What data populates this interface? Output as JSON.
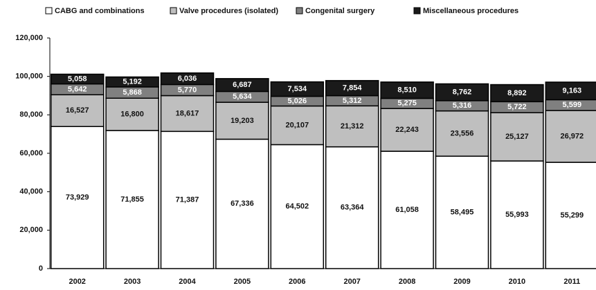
{
  "chart_data": {
    "type": "stacked_bar",
    "categories": [
      "2002",
      "2003",
      "2004",
      "2005",
      "2006",
      "2007",
      "2008",
      "2009",
      "2010",
      "2011"
    ],
    "series": [
      {
        "name": "CABG and combinations",
        "color": "#ffffff",
        "values": [
          73929,
          71855,
          71387,
          67336,
          64502,
          63364,
          61058,
          58495,
          55993,
          55299
        ],
        "value_labels": [
          "73,929",
          "71,855",
          "71,387",
          "67,336",
          "64,502",
          "63,364",
          "61,058",
          "58,495",
          "55,993",
          "55,299"
        ]
      },
      {
        "name": "Valve procedures (isolated)",
        "color": "#bfbfbf",
        "values": [
          16527,
          16800,
          18617,
          19203,
          20107,
          21312,
          22243,
          23556,
          25127,
          26972
        ],
        "value_labels": [
          "16,527",
          "16,800",
          "18,617",
          "19,203",
          "20,107",
          "21,312",
          "22,243",
          "23,556",
          "25,127",
          "26,972"
        ]
      },
      {
        "name": "Congenital surgery",
        "color": "#808080",
        "values": [
          5642,
          5868,
          5770,
          5634,
          5026,
          5312,
          5275,
          5316,
          5722,
          5599
        ],
        "value_labels": [
          "5,642",
          "5,868",
          "5,770",
          "5,634",
          "5,026",
          "5,312",
          "5,275",
          "5,316",
          "5,722",
          "5,599"
        ]
      },
      {
        "name": "Miscellaneous procedures",
        "color": "#1a1a1a",
        "values": [
          5058,
          5192,
          6036,
          6687,
          7534,
          7854,
          8510,
          8762,
          8892,
          9163
        ],
        "value_labels": [
          "5,058",
          "5,192",
          "6,036",
          "6,687",
          "7,534",
          "7,854",
          "8,510",
          "8,762",
          "8,892",
          "9,163"
        ]
      }
    ],
    "ylim": [
      0,
      120000
    ],
    "yticks": [
      0,
      {
        "value": 20000,
        "label": "20,000"
      },
      {
        "value": 40000,
        "label": "40,000"
      },
      {
        "value": 60000,
        "label": "60,000"
      },
      {
        "value": 80000,
        "label": "80,000"
      },
      {
        "value": 100000,
        "label": "100,000"
      },
      {
        "value": 120000,
        "label": "120,000"
      }
    ],
    "legend": "top",
    "grid": false
  }
}
